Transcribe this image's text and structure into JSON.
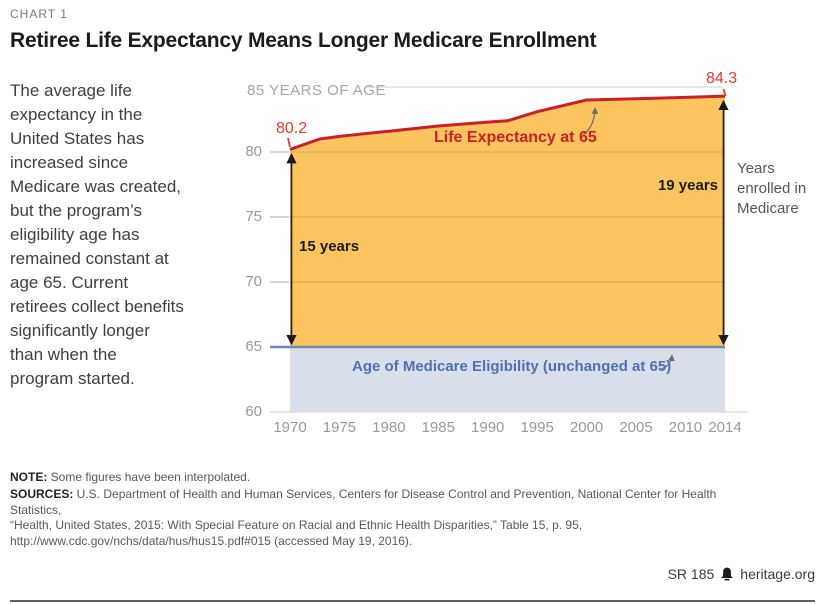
{
  "header": {
    "kicker": "CHART 1",
    "title": "Retiree Life Expectancy Means Longer Medicare Enrollment"
  },
  "sidebar": {
    "lines": [
      "The average life",
      "expectancy in the",
      "United States has",
      "increased since",
      "Medicare was created,",
      "but the program’s",
      "eligibility age has",
      "remained constant at",
      "age 65. Current",
      "retirees collect benefits",
      "significantly longer",
      "than when the",
      "program started."
    ]
  },
  "chart_data": {
    "type": "area",
    "x": [
      1970,
      1973,
      1975,
      1980,
      1985,
      1990,
      1992,
      1995,
      2000,
      2005,
      2010,
      2014
    ],
    "y": [
      80.2,
      81.0,
      81.2,
      81.6,
      82.0,
      82.3,
      82.4,
      83.1,
      84.0,
      84.1,
      84.2,
      84.3
    ],
    "series_name": "Life Expectancy at 65",
    "x_ticks": [
      1970,
      1975,
      1980,
      1985,
      1990,
      1995,
      2000,
      2005,
      2010,
      2014
    ],
    "y_ticks": [
      60,
      65,
      70,
      75,
      80
    ],
    "xlim": [
      1970,
      2014
    ],
    "ylim": [
      60,
      85
    ],
    "top_axis_label": "85 YEARS OF AGE",
    "eligibility_age": 65,
    "grid": "horizontal",
    "annotations": {
      "start_value_label": "80.2",
      "end_value_label": "84.3",
      "span_start_label": "15 years",
      "span_end_label": "19 years",
      "right_note_lines": [
        "Years",
        "enrolled in",
        "Medicare"
      ],
      "eligibility_label": "Age of Medicare Eligibility (unchanged at 65)"
    },
    "colors": {
      "area_fill": "#fbc45f",
      "line_red": "#cb2026",
      "label_red": "#e23a2c",
      "band_fill": "#d9deeb",
      "band_line": "#7487b4",
      "grid_light": "#dedede",
      "tick_gray": "#c9c9c9",
      "arrow_black": "#1a1a1a",
      "arrow_gray": "#6e6e6e"
    }
  },
  "footer": {
    "note_label": "NOTE:",
    "note_text": " Some figures have been interpolated.",
    "sources_label": "SOURCES:",
    "sources_line1": " U.S. Department of Health and Human Services, Centers for Disease Control and Prevention, National Center for Health Statistics,",
    "sources_line2": "“Health, United States, 2015: With Special Feature on Racial and Ethnic Health Disparities,” Table 15, p. 95,",
    "sources_line3": "http://www.cdc.gov/nchs/data/hus/hus15.pdf#015 (accessed May 19, 2016).",
    "report_id": "SR 185",
    "site": "heritage.org"
  }
}
